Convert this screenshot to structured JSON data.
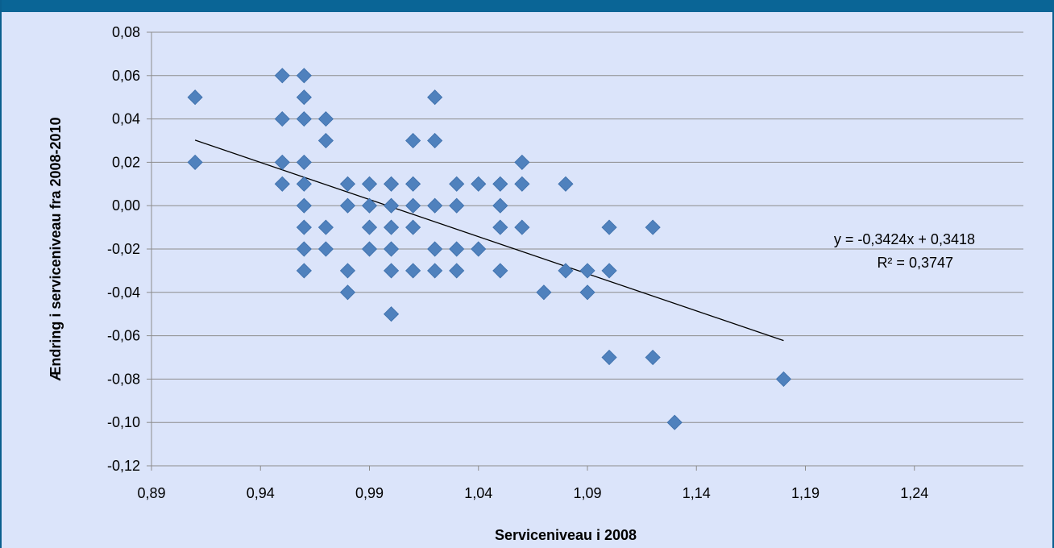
{
  "colors": {
    "frame": "#0a6596",
    "background": "#dbe4fa",
    "marker": "#4f81bd",
    "gridline": "#8c8c8c",
    "trendline": "#000000"
  },
  "chart_data": {
    "type": "scatter",
    "xlabel": "Serviceniveau i 2008",
    "ylabel": "Ændring i serviceniveau fra 2008-2010",
    "xlim": [
      0.89,
      1.29
    ],
    "ylim": [
      -0.12,
      0.08
    ],
    "xticks": [
      "0,89",
      "0,94",
      "0,99",
      "1,04",
      "1,09",
      "1,14",
      "1,19",
      "1,24"
    ],
    "yticks": [
      "0,08",
      "0,06",
      "0,04",
      "0,02",
      "0,00",
      "-0,02",
      "-0,04",
      "-0,06",
      "-0,08",
      "-0,10",
      "-0,12"
    ],
    "grid": "horizontal",
    "marker": "diamond",
    "points": [
      [
        0.91,
        0.05
      ],
      [
        0.91,
        0.02
      ],
      [
        0.95,
        0.06
      ],
      [
        0.95,
        0.04
      ],
      [
        0.95,
        0.02
      ],
      [
        0.95,
        0.01
      ],
      [
        0.96,
        0.06
      ],
      [
        0.96,
        0.05
      ],
      [
        0.96,
        0.04
      ],
      [
        0.96,
        0.02
      ],
      [
        0.96,
        0.01
      ],
      [
        0.96,
        0.0
      ],
      [
        0.96,
        -0.01
      ],
      [
        0.96,
        -0.02
      ],
      [
        0.96,
        -0.03
      ],
      [
        0.97,
        0.04
      ],
      [
        0.97,
        0.03
      ],
      [
        0.97,
        -0.01
      ],
      [
        0.97,
        -0.02
      ],
      [
        0.98,
        0.01
      ],
      [
        0.98,
        0.0
      ],
      [
        0.98,
        -0.03
      ],
      [
        0.98,
        -0.04
      ],
      [
        0.99,
        0.01
      ],
      [
        0.99,
        0.0
      ],
      [
        0.99,
        -0.01
      ],
      [
        0.99,
        -0.02
      ],
      [
        1.0,
        0.01
      ],
      [
        1.0,
        0.0
      ],
      [
        1.0,
        -0.01
      ],
      [
        1.0,
        -0.02
      ],
      [
        1.0,
        -0.03
      ],
      [
        1.0,
        -0.05
      ],
      [
        1.01,
        0.03
      ],
      [
        1.01,
        0.01
      ],
      [
        1.01,
        0.0
      ],
      [
        1.01,
        -0.01
      ],
      [
        1.01,
        -0.03
      ],
      [
        1.02,
        0.05
      ],
      [
        1.02,
        0.03
      ],
      [
        1.02,
        0.0
      ],
      [
        1.02,
        -0.02
      ],
      [
        1.02,
        -0.03
      ],
      [
        1.03,
        0.01
      ],
      [
        1.03,
        0.0
      ],
      [
        1.03,
        -0.02
      ],
      [
        1.03,
        -0.03
      ],
      [
        1.04,
        0.01
      ],
      [
        1.04,
        -0.02
      ],
      [
        1.05,
        0.01
      ],
      [
        1.05,
        0.0
      ],
      [
        1.05,
        -0.01
      ],
      [
        1.05,
        -0.03
      ],
      [
        1.06,
        0.02
      ],
      [
        1.06,
        0.01
      ],
      [
        1.06,
        -0.01
      ],
      [
        1.07,
        -0.04
      ],
      [
        1.08,
        0.01
      ],
      [
        1.08,
        -0.03
      ],
      [
        1.09,
        -0.03
      ],
      [
        1.09,
        -0.04
      ],
      [
        1.1,
        -0.01
      ],
      [
        1.1,
        -0.03
      ],
      [
        1.1,
        -0.07
      ],
      [
        1.12,
        -0.01
      ],
      [
        1.12,
        -0.07
      ],
      [
        1.13,
        -0.1
      ],
      [
        1.18,
        -0.08
      ]
    ],
    "trendline": {
      "slope": -0.3424,
      "intercept": 0.3418,
      "x_range": [
        0.91,
        1.18
      ]
    },
    "annotations": {
      "equation": "y = -0,3424x + 0,3418",
      "r_squared": "R² = 0,3747"
    }
  }
}
